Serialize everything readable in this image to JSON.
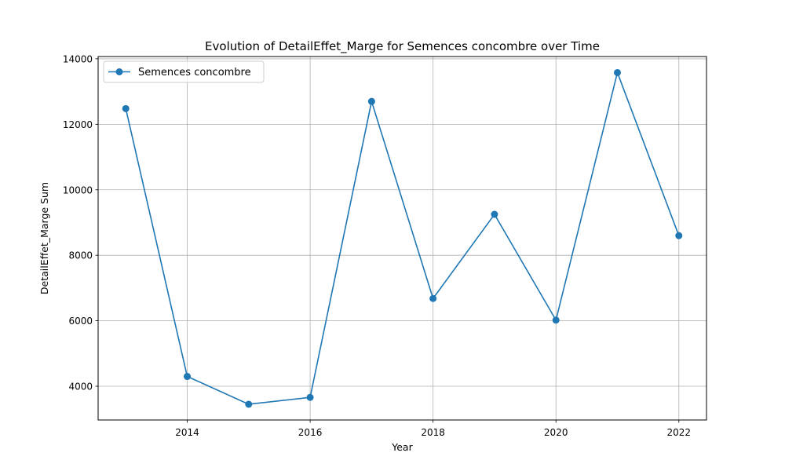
{
  "chart_data": {
    "type": "line",
    "title": "Evolution of DetailEffet_Marge for Semences concombre over Time",
    "xlabel": "Year",
    "ylabel": "DetailEffet_Marge Sum",
    "xlim": [
      2012.55,
      2022.45
    ],
    "ylim": [
      2970,
      14070
    ],
    "x_ticks": [
      2014,
      2016,
      2018,
      2020,
      2022
    ],
    "y_ticks": [
      4000,
      6000,
      8000,
      10000,
      12000,
      14000
    ],
    "grid": true,
    "legend_position": "top-left",
    "series": [
      {
        "name": "Semences concombre",
        "color": "#1f77b4",
        "marker": "circle",
        "x": [
          2013,
          2014,
          2015,
          2016,
          2017,
          2018,
          2019,
          2020,
          2021,
          2022
        ],
        "y": [
          12480,
          4300,
          3450,
          3660,
          12700,
          6680,
          9250,
          6020,
          13580,
          8600
        ]
      }
    ]
  }
}
